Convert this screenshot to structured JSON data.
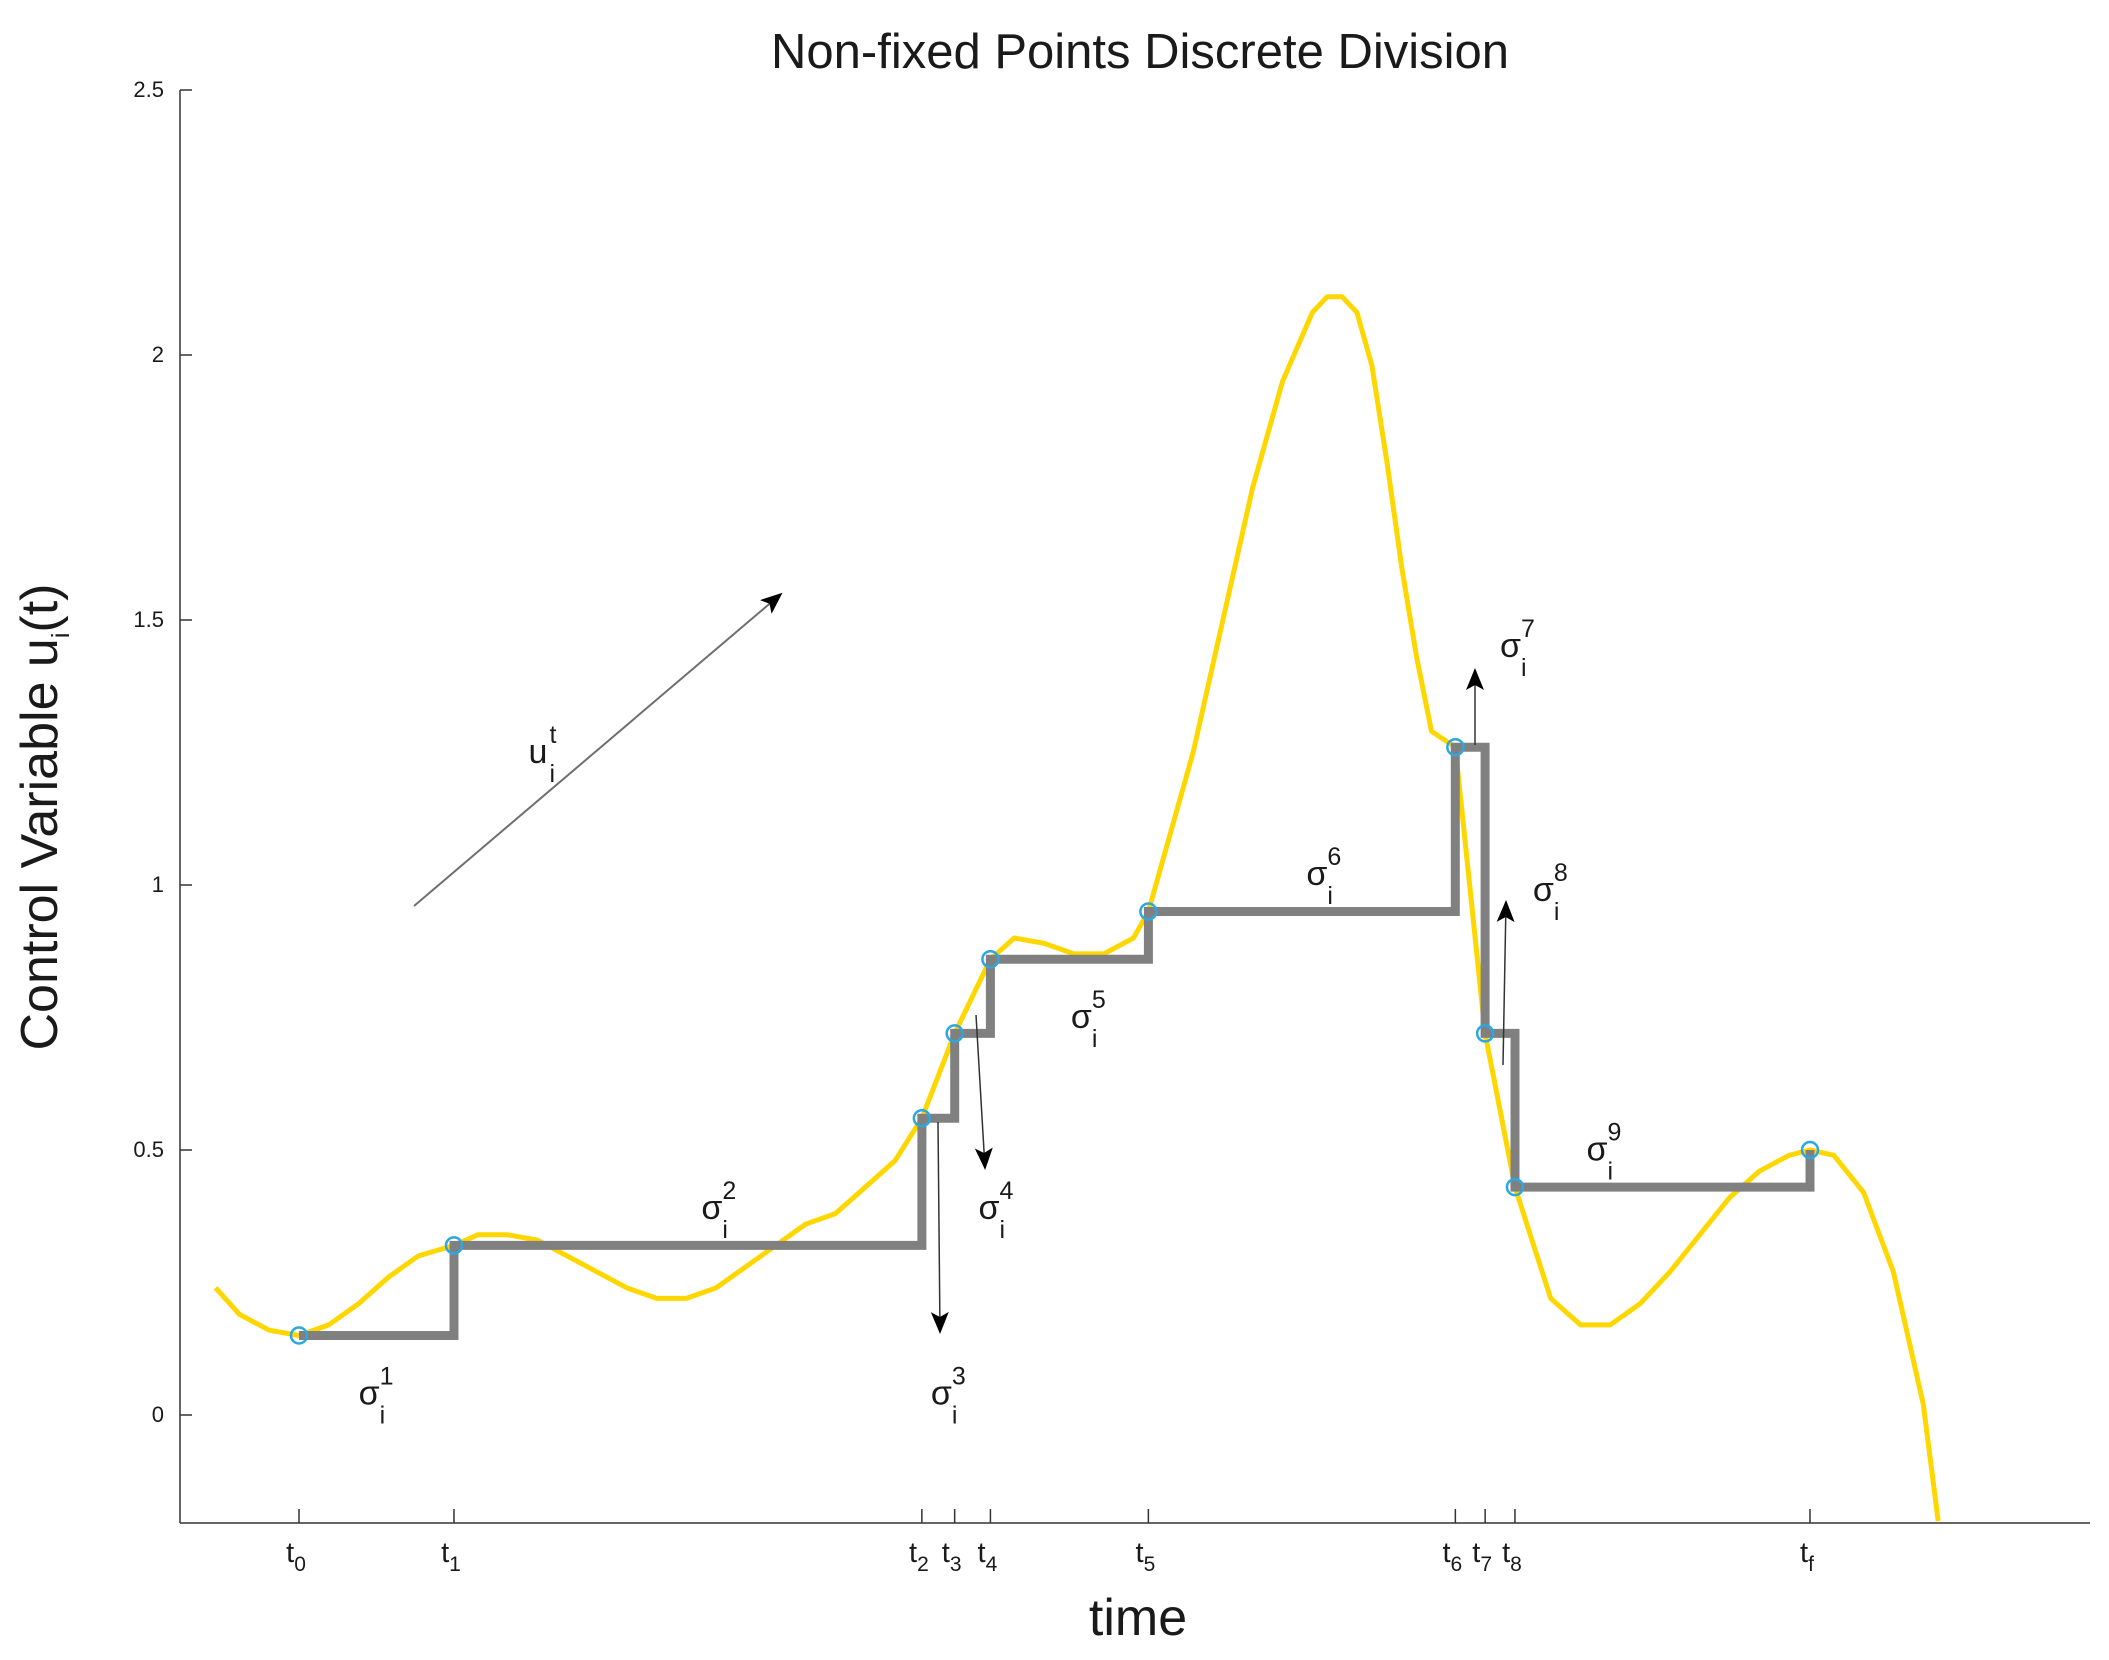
{
  "chart_data": {
    "type": "line",
    "title": "Non-fixed Points Discrete Division",
    "xlabel": "time",
    "ylabel": {
      "text": "Control Variable u",
      "sub": "i",
      "suffix": "(t)"
    },
    "ylim": [
      -0.2,
      2.5
    ],
    "yticks": [
      0,
      0.5,
      1,
      1.5,
      2,
      2.5
    ],
    "ytick_labels": [
      "0",
      "0.5",
      "1",
      "1.5",
      "2",
      "2.5"
    ],
    "grid": false,
    "xticks": [
      {
        "x": 1.0,
        "base": "t",
        "sub": "0"
      },
      {
        "x": 1.52,
        "base": "t",
        "sub": "1"
      },
      {
        "x": 3.09,
        "base": "t",
        "sub": "2"
      },
      {
        "x": 3.2,
        "base": "t",
        "sub": "3"
      },
      {
        "x": 3.32,
        "base": "t",
        "sub": "4"
      },
      {
        "x": 3.85,
        "base": "t",
        "sub": "5"
      },
      {
        "x": 4.88,
        "base": "t",
        "sub": "6"
      },
      {
        "x": 4.98,
        "base": "t",
        "sub": "7"
      },
      {
        "x": 5.08,
        "base": "t",
        "sub": "8"
      },
      {
        "x": 6.07,
        "base": "t",
        "sub": "f"
      }
    ],
    "series": [
      {
        "kind": "curve",
        "color": "#FFD700",
        "x": [
          0.72,
          0.8,
          0.9,
          1.0,
          1.1,
          1.2,
          1.3,
          1.4,
          1.52,
          1.6,
          1.7,
          1.8,
          1.9,
          2.0,
          2.1,
          2.2,
          2.3,
          2.4,
          2.5,
          2.6,
          2.7,
          2.8,
          2.9,
          3.0,
          3.09,
          3.2,
          3.32,
          3.4,
          3.5,
          3.6,
          3.7,
          3.8,
          3.85,
          3.9,
          4.0,
          4.1,
          4.2,
          4.3,
          4.4,
          4.45,
          4.5,
          4.55,
          4.6,
          4.65,
          4.7,
          4.75,
          4.8,
          4.88,
          4.98,
          5.08,
          5.2,
          5.3,
          5.4,
          5.5,
          5.6,
          5.7,
          5.8,
          5.9,
          6.0,
          6.07,
          6.15,
          6.25,
          6.35,
          6.45,
          6.5
        ],
        "y": [
          0.24,
          0.19,
          0.16,
          0.15,
          0.17,
          0.21,
          0.26,
          0.3,
          0.32,
          0.34,
          0.34,
          0.33,
          0.3,
          0.27,
          0.24,
          0.22,
          0.22,
          0.24,
          0.28,
          0.32,
          0.36,
          0.38,
          0.43,
          0.48,
          0.56,
          0.72,
          0.86,
          0.9,
          0.89,
          0.87,
          0.87,
          0.9,
          0.95,
          1.05,
          1.25,
          1.5,
          1.75,
          1.95,
          2.08,
          2.11,
          2.11,
          2.08,
          1.98,
          1.8,
          1.6,
          1.43,
          1.29,
          1.26,
          0.72,
          0.43,
          0.22,
          0.17,
          0.17,
          0.21,
          0.27,
          0.34,
          0.41,
          0.46,
          0.49,
          0.5,
          0.49,
          0.42,
          0.27,
          0.02,
          -0.2
        ]
      },
      {
        "kind": "step",
        "color": "#808080",
        "x": [
          1.0,
          1.52,
          3.09,
          3.2,
          3.32,
          3.85,
          4.88,
          4.98,
          5.08,
          6.07
        ],
        "y": [
          0.15,
          0.32,
          0.56,
          0.72,
          0.86,
          0.95,
          1.26,
          0.72,
          0.43,
          0.5
        ]
      }
    ],
    "annotations": [
      {
        "base": "u",
        "sup": "t",
        "sub": "i",
        "x": 1.77,
        "y": 1.23
      },
      {
        "base": "σ",
        "sup": "1",
        "sub": "i",
        "x": 1.2,
        "y": 0.02
      },
      {
        "base": "σ",
        "sup": "2",
        "sub": "i",
        "x": 2.35,
        "y": 0.37
      },
      {
        "base": "σ",
        "sup": "3",
        "sub": "i",
        "x": 3.12,
        "y": 0.02
      },
      {
        "base": "σ",
        "sup": "4",
        "sub": "i",
        "x": 3.28,
        "y": 0.37
      },
      {
        "base": "σ",
        "sup": "5",
        "sub": "i",
        "x": 3.59,
        "y": 0.73
      },
      {
        "base": "σ",
        "sup": "6",
        "sub": "i",
        "x": 4.38,
        "y": 1.0
      },
      {
        "base": "σ",
        "sup": "7",
        "sub": "i",
        "x": 5.03,
        "y": 1.43
      },
      {
        "base": "σ",
        "sup": "8",
        "sub": "i",
        "x": 5.14,
        "y": 0.97
      },
      {
        "base": "σ",
        "sup": "9",
        "sub": "i",
        "x": 5.32,
        "y": 0.48
      }
    ]
  }
}
